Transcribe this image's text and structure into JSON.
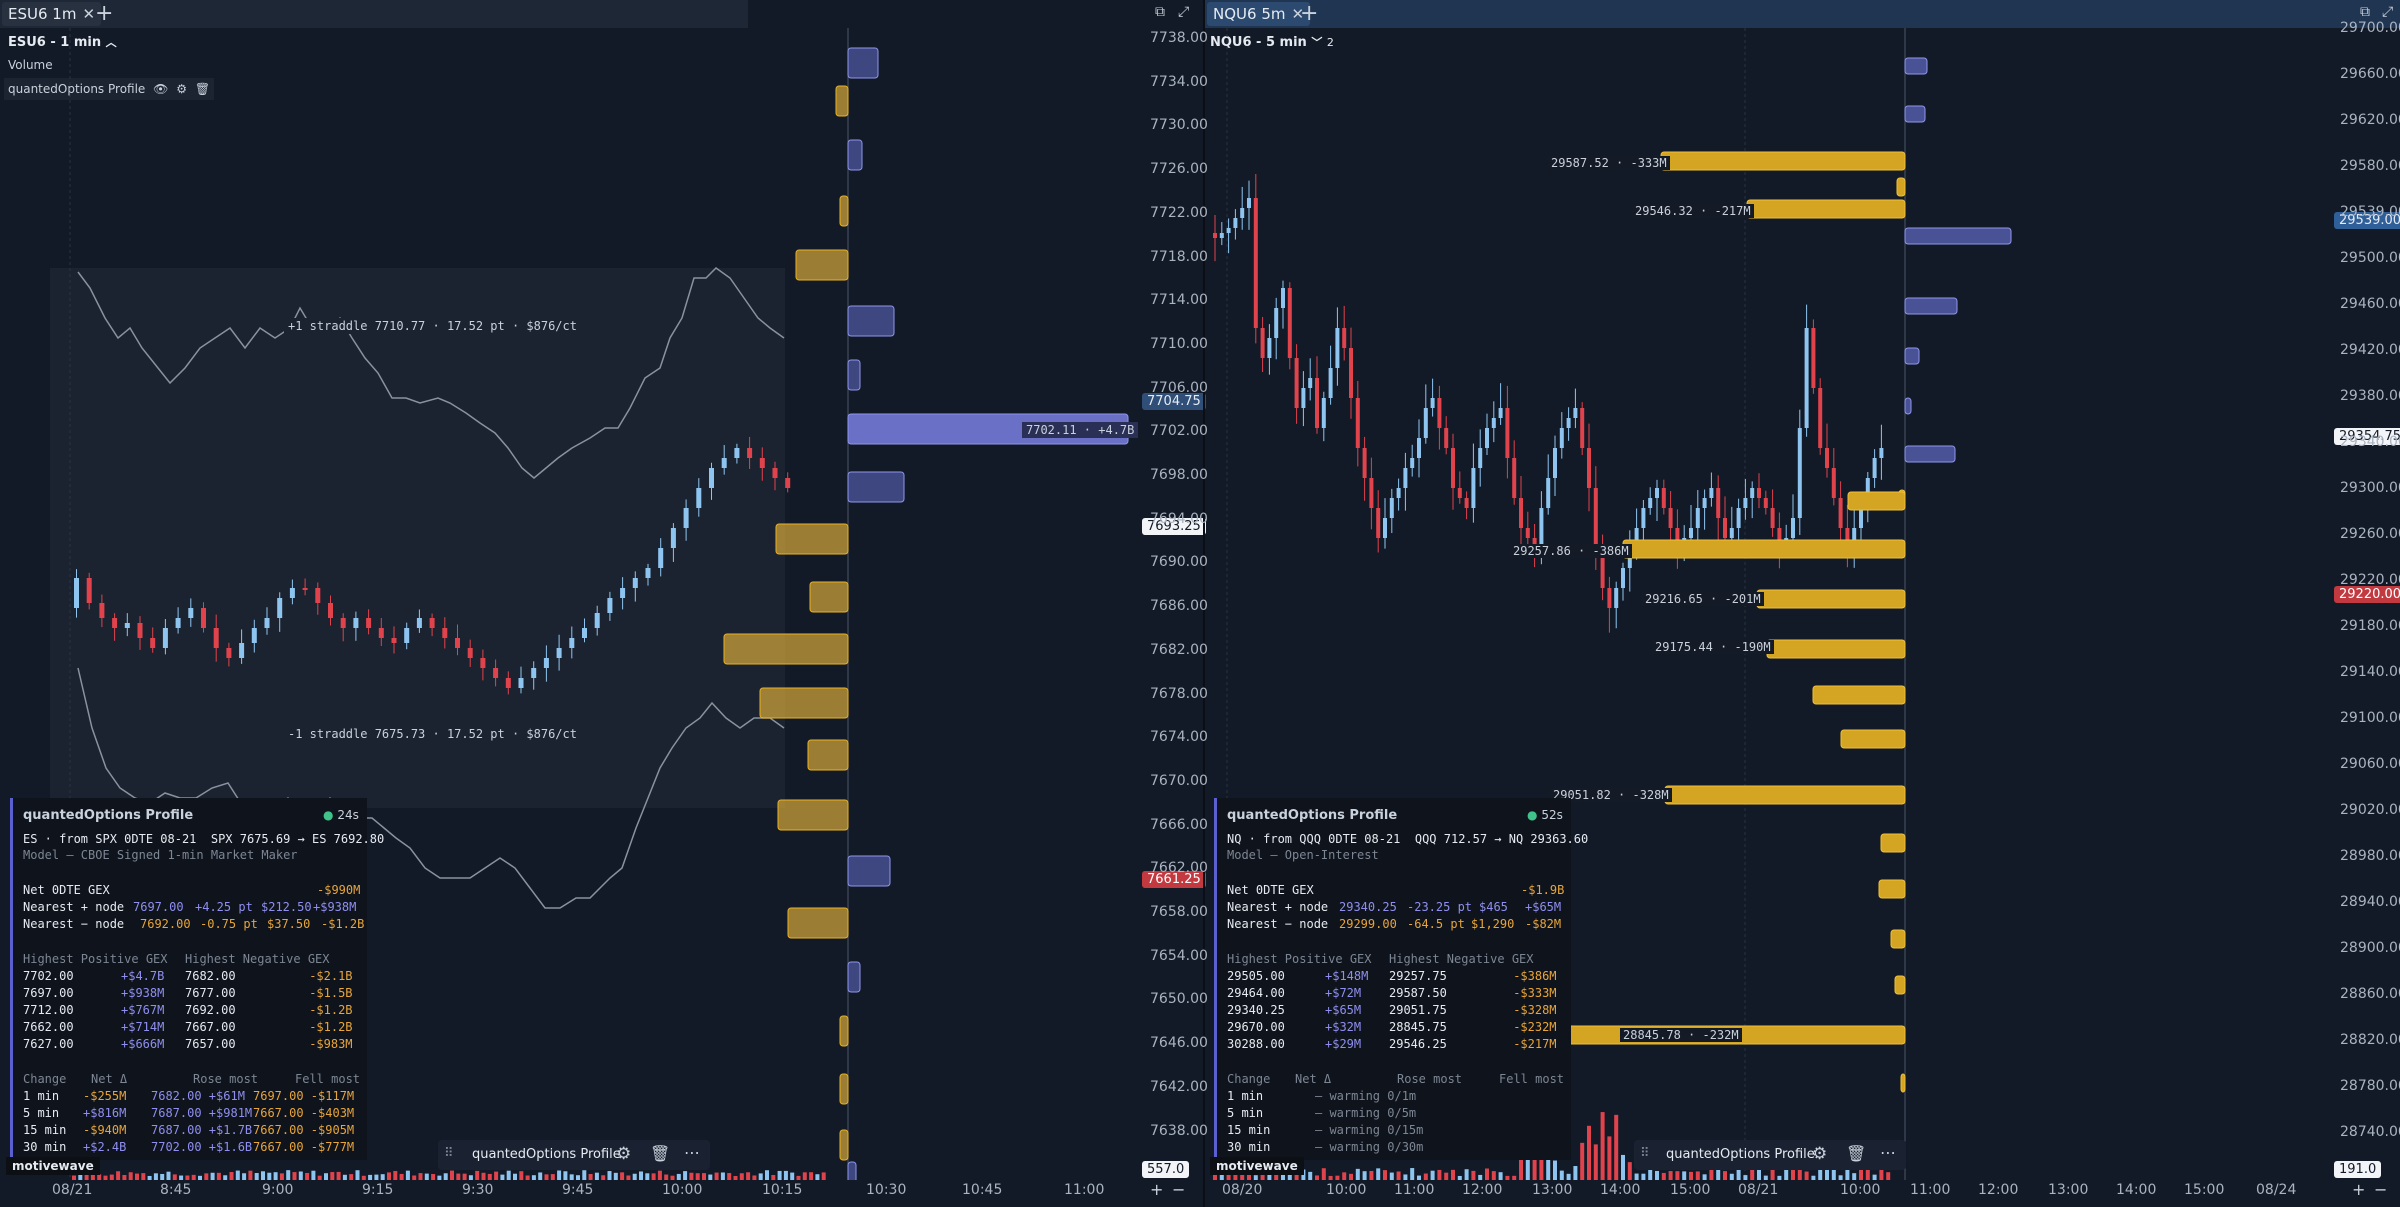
{
  "left": {
    "tab_label": "ESU6 1m",
    "chart_title": "ESU6 - 1 min",
    "volume_label": "Volume",
    "indicator_label": "quantedOptions Profile",
    "y_axis": [
      "7738.00",
      "7734.00",
      "7730.00",
      "7726.00",
      "7722.00",
      "7718.00",
      "7714.00",
      "7710.00",
      "7706.00",
      "7702.00",
      "7698.00",
      "7694.00",
      "7690.00",
      "7686.00",
      "7682.00",
      "7678.00",
      "7674.00",
      "7670.00",
      "7666.00",
      "7662.00",
      "7658.00",
      "7654.00",
      "7650.00",
      "7646.00",
      "7642.00",
      "7638.00"
    ],
    "x_axis": [
      "08/21",
      "8:45",
      "9:00",
      "9:15",
      "9:30",
      "9:45",
      "10:00",
      "10:15",
      "10:30",
      "10:45",
      "11:00"
    ],
    "price_tags": {
      "current": "7704.75",
      "mid": "7693.25",
      "low": "7661.25",
      "vol": "557.0"
    },
    "straddle_up": "+1 straddle 7710.77 · 17.52 pt · $876/ct",
    "straddle_dn": "-1 straddle 7675.73 · 17.52 pt · $876/ct",
    "big_node_label": "7702.11 · +4.7B",
    "panel": {
      "title": "quantedOptions Profile",
      "age": "24s",
      "source": "ES · from SPX 0DTE 08-21  SPX 7675.69 → ES 7692.80",
      "model": "Model — CBOE Signed 1-min Market Maker",
      "net_label": "Net 0DTE GEX",
      "net_value": "-$990M",
      "near_pos": {
        "label": "Nearest + node",
        "a": "7697.00",
        "b": "+4.25 pt",
        "c": "$212.50",
        "d": "+$938M"
      },
      "near_neg": {
        "label": "Nearest − node",
        "a": "7692.00",
        "b": "-0.75 pt",
        "c": "$37.50",
        "d": "-$1.2B"
      },
      "pos_header": "Highest Positive GEX",
      "neg_header": "Highest Negative GEX",
      "rows": [
        {
          "p1": "7702.00",
          "v1": "+$4.7B",
          "p2": "7682.00",
          "v2": "-$2.1B"
        },
        {
          "p1": "7697.00",
          "v1": "+$938M",
          "p2": "7677.00",
          "v2": "-$1.5B"
        },
        {
          "p1": "7712.00",
          "v1": "+$767M",
          "p2": "7692.00",
          "v2": "-$1.2B"
        },
        {
          "p1": "7662.00",
          "v1": "+$714M",
          "p2": "7667.00",
          "v2": "-$1.2B"
        },
        {
          "p1": "7627.00",
          "v1": "+$666M",
          "p2": "7657.00",
          "v2": "-$983M"
        }
      ],
      "change_headers": {
        "a": "Change",
        "b": "Net Δ",
        "c": "Rose most",
        "d": "Fell most"
      },
      "changes": [
        {
          "t": "1 min",
          "n": "-$255M",
          "r": "7682.00 +$61M",
          "f": "7697.00 -$117M"
        },
        {
          "t": "5 min",
          "n": "+$816M",
          "r": "7687.00 +$981M",
          "f": "7667.00 -$403M"
        },
        {
          "t": "15 min",
          "n": "-$940M",
          "r": "7687.00 +$1.7B",
          "f": "7667.00 -$905M"
        },
        {
          "t": "30 min",
          "n": "+$2.4B",
          "r": "7702.00 +$1.6B",
          "f": "7667.00 -$777M"
        }
      ]
    },
    "float_toolbar_label": "quantedOptions Profile"
  },
  "right": {
    "tab_label": "NQU6 5m",
    "chart_title": "NQU6 - 5 min",
    "chart_title_count": "2",
    "y_axis": [
      "29700.00",
      "29660.00",
      "29620.00",
      "29580.00",
      "29539.00",
      "29500.00",
      "29460.00",
      "29420.00",
      "29380.00",
      "29340.00",
      "29300.00",
      "29260.00",
      "29220.00",
      "29180.00",
      "29140.00",
      "29100.00",
      "29060.00",
      "29020.00",
      "28980.00",
      "28940.00",
      "28900.00",
      "28860.00",
      "28820.00",
      "28780.00",
      "28740.00"
    ],
    "x_axis": [
      "08/20",
      "10:00",
      "11:00",
      "12:00",
      "13:00",
      "14:00",
      "15:00",
      "08/21",
      "10:00",
      "11:00",
      "12:00",
      "13:00",
      "14:00",
      "15:00",
      "08/24"
    ],
    "price_tags": {
      "blue": "29539.00",
      "current": "29354.75",
      "red": "29220.00",
      "vol": "191.0"
    },
    "node_labels": [
      "29587.52 · -333M",
      "29546.32 · -217M",
      "29257.86 · -386M",
      "29216.65 · -201M",
      "29175.44 · -190M",
      "29051.82 · -328M",
      "28845.78 · -232M"
    ],
    "panel": {
      "title": "quantedOptions Profile",
      "age": "52s",
      "source": "NQ · from QQQ 0DTE 08-21  QQQ 712.57 → NQ 29363.60",
      "model": "Model — Open-Interest",
      "net_label": "Net 0DTE GEX",
      "net_value": "-$1.9B",
      "near_pos": {
        "label": "Nearest + node",
        "a": "29340.25",
        "b": "-23.25 pt",
        "c": "$465",
        "d": "+$65M"
      },
      "near_neg": {
        "label": "Nearest − node",
        "a": "29299.00",
        "b": "-64.5 pt",
        "c": "$1,290",
        "d": "-$82M"
      },
      "pos_header": "Highest Positive GEX",
      "neg_header": "Highest Negative GEX",
      "rows": [
        {
          "p1": "29505.00",
          "v1": "+$148M",
          "p2": "29257.75",
          "v2": "-$386M"
        },
        {
          "p1": "29464.00",
          "v1": "+$72M",
          "p2": "29587.50",
          "v2": "-$333M"
        },
        {
          "p1": "29340.25",
          "v1": "+$65M",
          "p2": "29051.75",
          "v2": "-$328M"
        },
        {
          "p1": "29670.00",
          "v1": "+$32M",
          "p2": "28845.75",
          "v2": "-$232M"
        },
        {
          "p1": "30288.00",
          "v1": "+$29M",
          "p2": "29546.25",
          "v2": "-$217M"
        }
      ],
      "change_headers": {
        "a": "Change",
        "b": "Net Δ",
        "c": "Rose most",
        "d": "Fell most"
      },
      "changes": [
        {
          "t": "1 min",
          "n": "— warming 0/1m"
        },
        {
          "t": "5 min",
          "n": "— warming 0/5m"
        },
        {
          "t": "15 min",
          "n": "— warming 0/15m"
        },
        {
          "t": "30 min",
          "n": "— warming 0/30m"
        }
      ]
    },
    "float_toolbar_label": "quantedOptions Profile"
  },
  "logo": "motivewave",
  "colors": {
    "bg": "#131a27",
    "bull": "#8ec5f0",
    "bear": "#e0434b",
    "pos_bar": "#6b72d8",
    "neg_bar": "#e8b224"
  }
}
